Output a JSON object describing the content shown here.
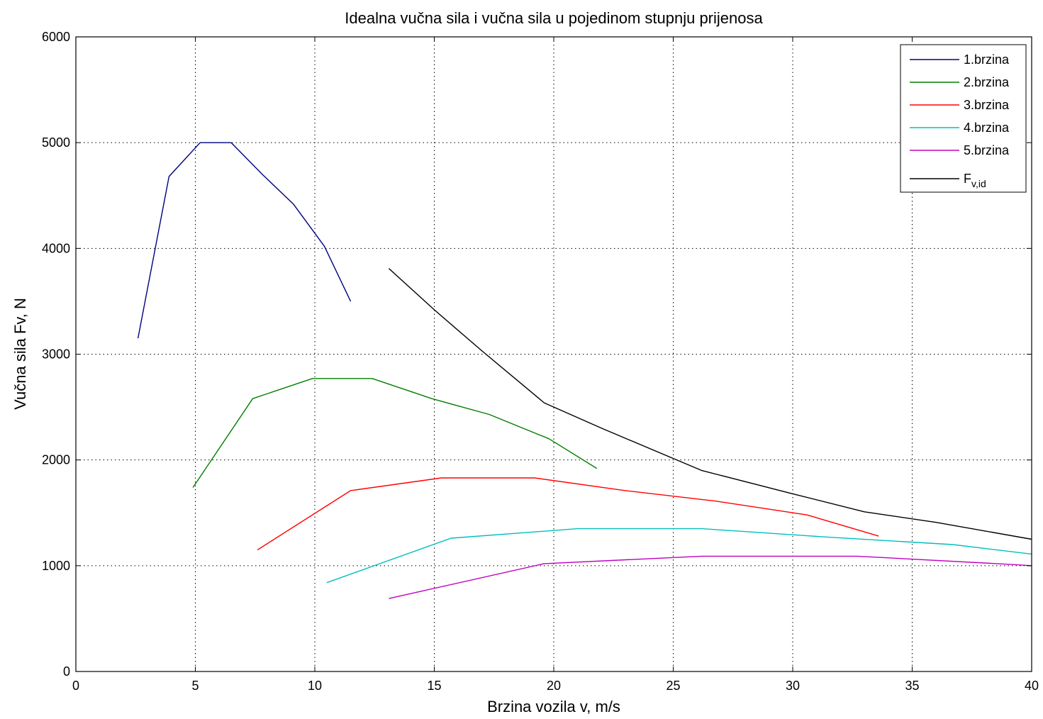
{
  "chart_data": {
    "type": "line",
    "title": "Idealna vučna sila i vučna sila u pojedinom stupnju prijenosa",
    "xlabel": "Brzina vozila v, m/s",
    "ylabel": "Vučna sila Fv, N",
    "xlim": [
      0,
      40
    ],
    "ylim": [
      0,
      6000
    ],
    "xticks": [
      "0",
      "5",
      "10",
      "15",
      "20",
      "25",
      "30",
      "35",
      "40"
    ],
    "yticks": [
      "0",
      "1000",
      "2000",
      "3000",
      "4000",
      "5000",
      "6000"
    ],
    "grid": true,
    "legend_position": "top-right",
    "series": [
      {
        "name": "1.brzina",
        "color": "#000080",
        "x": [
          2.6,
          3.9,
          5.2,
          6.5,
          7.8,
          9.1,
          10.4,
          11.5
        ],
        "y": [
          3150,
          4680,
          5000,
          5000,
          4700,
          4420,
          4020,
          3500
        ]
      },
      {
        "name": "2.brzina",
        "color": "#007f00",
        "x": [
          4.9,
          7.4,
          9.9,
          12.4,
          14.9,
          17.3,
          19.8,
          21.8
        ],
        "y": [
          1740,
          2580,
          2770,
          2770,
          2580,
          2430,
          2200,
          1920
        ]
      },
      {
        "name": "3.brzina",
        "color": "#ff0000",
        "x": [
          7.6,
          11.5,
          15.3,
          19.2,
          23.0,
          26.8,
          30.6,
          33.6
        ],
        "y": [
          1150,
          1710,
          1830,
          1830,
          1710,
          1610,
          1480,
          1280
        ]
      },
      {
        "name": "4.brzina",
        "color": "#00bfbf",
        "x": [
          10.5,
          15.7,
          21.0,
          26.2,
          31.5,
          36.7,
          40.0
        ],
        "y": [
          840,
          1260,
          1350,
          1350,
          1270,
          1200,
          1110
        ]
      },
      {
        "name": "5.brzina",
        "color": "#bf00bf",
        "x": [
          13.1,
          19.6,
          26.2,
          32.7,
          39.3,
          40.0
        ],
        "y": [
          690,
          1020,
          1090,
          1090,
          1010,
          1000
        ]
      },
      {
        "name": "F",
        "name_subscript": "v,id",
        "color": "#000000",
        "x": [
          13.1,
          15.0,
          17.0,
          19.6,
          22.0,
          26.2,
          30.0,
          33.0,
          36.0,
          40.0
        ],
        "y": [
          3810,
          3420,
          3030,
          2540,
          2300,
          1900,
          1680,
          1510,
          1410,
          1250
        ]
      }
    ]
  }
}
